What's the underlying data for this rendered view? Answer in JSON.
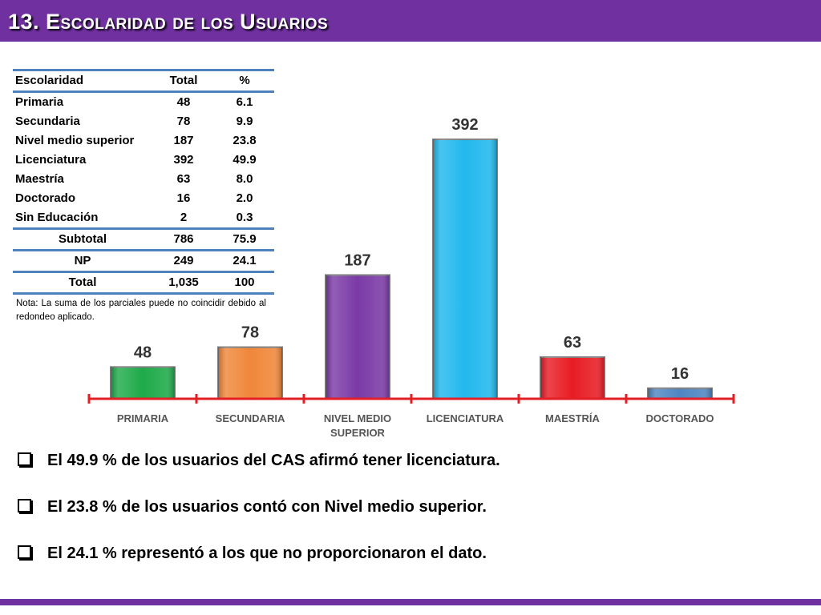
{
  "header": {
    "title": "13. Escolaridad de los Usuarios",
    "bar_color": "#7030a0"
  },
  "table": {
    "columns": [
      "Escolaridad",
      "Total",
      "%"
    ],
    "rows": [
      [
        "Primaria",
        "48",
        "6.1"
      ],
      [
        "Secundaria",
        "78",
        "9.9"
      ],
      [
        "Nivel medio superior",
        "187",
        "23.8"
      ],
      [
        "Licenciatura",
        "392",
        "49.9"
      ],
      [
        "Maestría",
        "63",
        "8.0"
      ],
      [
        "Doctorado",
        "16",
        "2.0"
      ],
      [
        "Sin Educación",
        "2",
        "0.3"
      ]
    ],
    "summary": [
      [
        "Subtotal",
        "786",
        "75.9"
      ],
      [
        "NP",
        "249",
        "24.1"
      ],
      [
        "Total",
        "1,035",
        "100"
      ]
    ],
    "note": "Nota: La suma de los parciales puede no coincidir debido al redondeo aplicado.",
    "rule_color": "#4f81bd"
  },
  "chart_data": {
    "type": "bar",
    "categories": [
      "PRIMARIA",
      "SECUNDARIA",
      "NIVEL MEDIO SUPERIOR",
      "LICENCIATURA",
      "MAESTRÍA",
      "DOCTORADO"
    ],
    "values": [
      48,
      78,
      187,
      392,
      63,
      16
    ],
    "colors": [
      "#1faa4a",
      "#f0873a",
      "#7a3aa6",
      "#22b8ee",
      "#e81c24",
      "#4f86c2"
    ],
    "axis_color": "#e31e24",
    "title": "",
    "xlabel": "",
    "ylabel": "",
    "ylim": [
      0,
      392
    ]
  },
  "bullets": [
    "El 49.9 % de los usuarios del CAS afirmó tener licenciatura.",
    "El 23.8 % de los usuarios contó con Nivel medio superior.",
    "El 24.1 % representó a los que no proporcionaron el dato."
  ]
}
